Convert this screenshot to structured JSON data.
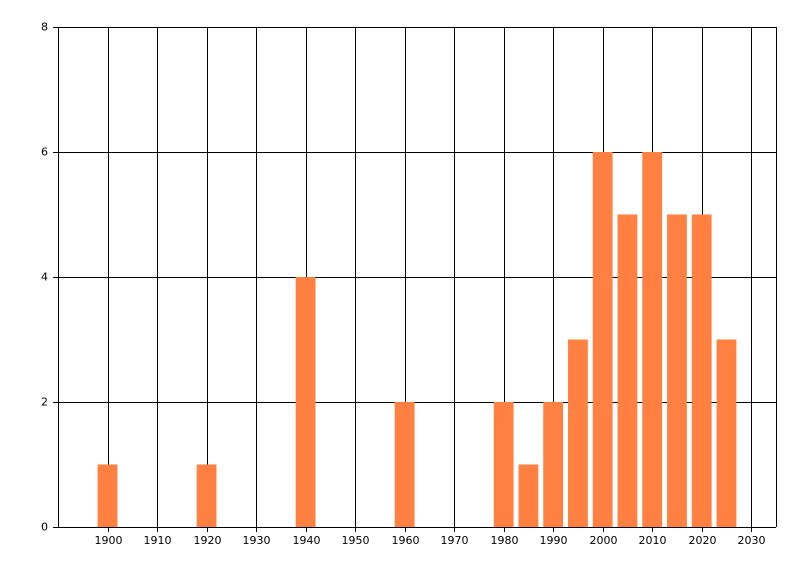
{
  "chart_data": {
    "type": "bar",
    "x": [
      1900,
      1920,
      1940,
      1960,
      1980,
      1985,
      1990,
      1995,
      2000,
      2005,
      2010,
      2015,
      2020,
      2025
    ],
    "values": [
      1,
      1,
      4,
      2,
      2,
      1,
      2,
      3,
      6,
      5,
      6,
      5,
      5,
      3
    ],
    "color": "#ff8040",
    "xlim": [
      1890,
      2035
    ],
    "xticks": [
      1900,
      1910,
      1920,
      1930,
      1940,
      1950,
      1960,
      1970,
      1980,
      1990,
      2000,
      2010,
      2020,
      2030
    ],
    "ylim": [
      0,
      8
    ],
    "yticks": [
      0,
      2,
      4,
      6,
      8
    ],
    "grid": true
  }
}
